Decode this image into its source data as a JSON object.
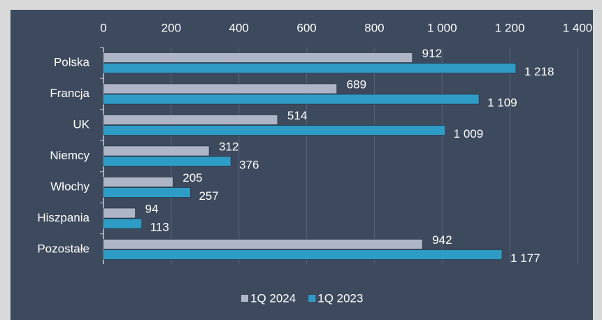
{
  "chart_data": {
    "type": "bar",
    "orientation": "horizontal",
    "categories": [
      "Polska",
      "Francja",
      "UK",
      "Niemcy",
      "Włochy",
      "Hiszpania",
      "Pozostałe"
    ],
    "series": [
      {
        "name": "1Q 2024",
        "color": "#aeb5c6",
        "values": [
          912,
          689,
          514,
          312,
          205,
          94,
          942
        ],
        "value_labels": [
          "912",
          "689",
          "514",
          "312",
          "205",
          "94",
          "942"
        ]
      },
      {
        "name": "1Q 2023",
        "color": "#2f9cc6",
        "values": [
          1218,
          1109,
          1009,
          376,
          257,
          113,
          1177
        ],
        "value_labels": [
          "1 218",
          "1 109",
          "1 009",
          "376",
          "257",
          "113",
          "1 177"
        ]
      }
    ],
    "xlim": [
      0,
      1400
    ],
    "xticks": [
      0,
      200,
      400,
      600,
      800,
      {
        "value": 1000,
        "label": "1 000"
      },
      {
        "value": 1200,
        "label": "1 200"
      },
      {
        "value": 1400,
        "label": "1 400"
      }
    ],
    "grid": true,
    "legend": "bottom"
  }
}
